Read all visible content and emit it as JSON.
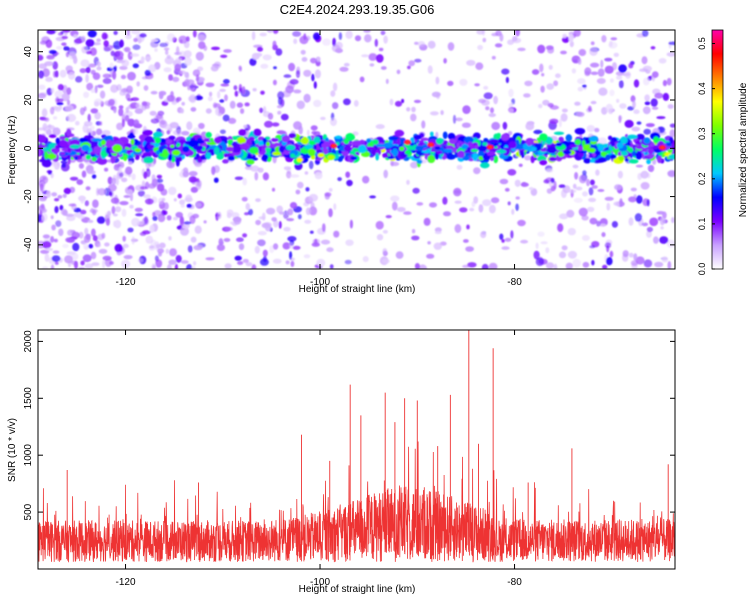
{
  "figure": {
    "title": "C2E4.2024.293.19.35.G06"
  },
  "chart_data": [
    {
      "type": "heatmap",
      "xlabel": "Height of straight line (km)",
      "ylabel": "Frequency (Hz)",
      "xlim": [
        -129,
        -63.5
      ],
      "ylim": [
        -50,
        49
      ],
      "x_ticks": [
        -120,
        -100,
        -80
      ],
      "y_ticks": [
        -40,
        -20,
        0,
        20,
        40
      ],
      "grid": false,
      "colorbar": {
        "label": "Normalized spectral amplitude",
        "range": [
          0.0,
          0.53
        ],
        "ticks": [
          0.0,
          0.1,
          0.2,
          0.3,
          0.4,
          0.5
        ],
        "colors": [
          "#ffffff",
          "#c8a0ff",
          "#7a00ff",
          "#0000ff",
          "#00c8ff",
          "#00ff64",
          "#7fff00",
          "#ffff00",
          "#ff8000",
          "#ff0000",
          "#ff00aa"
        ]
      },
      "band": {
        "center_hz": 0,
        "half_width_hz": 6
      }
    },
    {
      "type": "line",
      "xlabel": "Height of straight line (km)",
      "ylabel": "SNR (10 * v/v)",
      "xlim": [
        -129,
        -63.5
      ],
      "ylim": [
        0,
        2100
      ],
      "x_ticks": [
        -120,
        -100,
        -80
      ],
      "y_ticks": [
        500,
        1000,
        1500,
        2000
      ],
      "grid": false,
      "series_color": "#ee3333",
      "peaks": [
        {
          "x": -84.7,
          "y": 2100
        },
        {
          "x": -82.2,
          "y": 1940
        },
        {
          "x": -96.9,
          "y": 1620
        },
        {
          "x": -93.3,
          "y": 1550
        },
        {
          "x": -91.3,
          "y": 1500
        },
        {
          "x": -86.6,
          "y": 1530
        },
        {
          "x": -90.0,
          "y": 1480
        },
        {
          "x": -95.8,
          "y": 1350
        },
        {
          "x": -92.3,
          "y": 1290
        },
        {
          "x": -101.9,
          "y": 1180
        },
        {
          "x": -83.7,
          "y": 1100
        },
        {
          "x": -74.1,
          "y": 1060
        },
        {
          "x": -64.2,
          "y": 920
        },
        {
          "x": -126.0,
          "y": 870
        },
        {
          "x": -99.0,
          "y": 950
        },
        {
          "x": -87.9,
          "y": 1080
        },
        {
          "x": -78.6,
          "y": 760
        },
        {
          "x": -112.5,
          "y": 760
        }
      ]
    }
  ]
}
